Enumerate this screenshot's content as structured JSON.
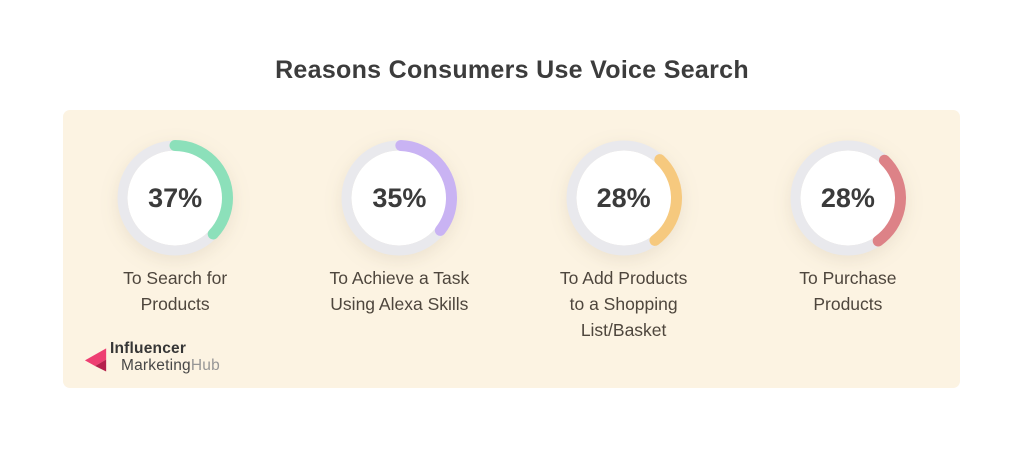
{
  "title": "Reasons Consumers Use Voice Search",
  "panel": {
    "background": "#fcf3e2",
    "track_color": "#e9e9ed"
  },
  "chart_data": {
    "type": "pie",
    "variant": "four-donut-gauges",
    "title": "Reasons Consumers Use Voice Search",
    "unit": "%",
    "categories": [
      "To Search for Products",
      "To Achieve a Task Using Alexa Skills",
      "To Add Products to a Shopping List/Basket",
      "To Purchase Products"
    ],
    "values": [
      37,
      35,
      28,
      28
    ],
    "colors": [
      "#8ce0ba",
      "#c9b3f3",
      "#f6c97e",
      "#dd8287"
    ],
    "track_color": "#e9e9ed",
    "legend_position": "none",
    "grid": false
  },
  "donuts": [
    {
      "percent_label": "37%",
      "value": 37,
      "start_deg": 0,
      "color": "#8ce0ba",
      "lines": [
        "To Search for",
        "Products"
      ]
    },
    {
      "percent_label": "35%",
      "value": 35,
      "start_deg": 2,
      "color": "#c9b3f3",
      "lines": [
        "To Achieve a Task",
        "Using Alexa Skills"
      ]
    },
    {
      "percent_label": "28%",
      "value": 28,
      "start_deg": 43,
      "color": "#f6c97e",
      "lines": [
        "To Add Products",
        "to a Shopping",
        "List/Basket"
      ]
    },
    {
      "percent_label": "28%",
      "value": 28,
      "start_deg": 44,
      "color": "#dd8287",
      "lines": [
        "To Purchase",
        "Products"
      ]
    }
  ],
  "logo": {
    "line1": "Influencer",
    "line2_part1": "Marketing",
    "line2_part2": "Hub",
    "colors": {
      "arrow_pink": "#ee3e72",
      "arrow_dark": "#b5204c",
      "text_dark": "#363636",
      "text_light": "#969696"
    }
  }
}
